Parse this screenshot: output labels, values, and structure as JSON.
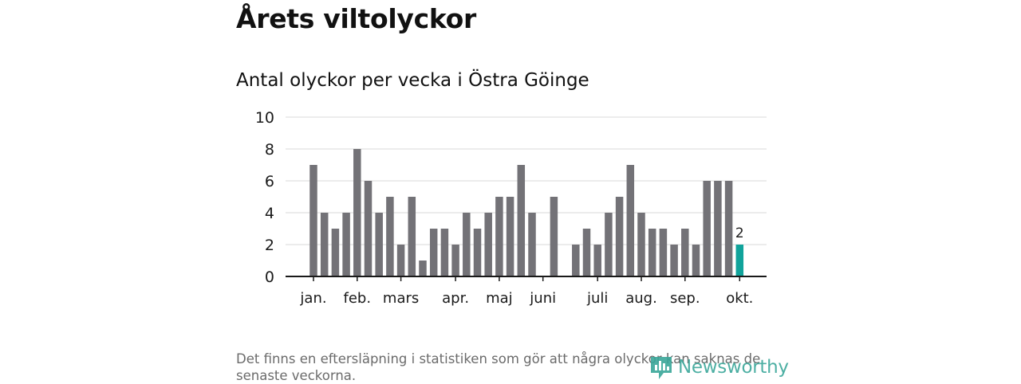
{
  "header": {
    "title": "Årets viltolyckor",
    "subtitle": "Antal olyckor per vecka i Östra Göinge"
  },
  "footer": {
    "note": "Det finns en eftersläpning i statistiken som gör att några olyckor kan saknas de senaste veckorna.",
    "brand": "Newsworthy"
  },
  "colors": {
    "bar": "#737277",
    "highlight": "#10a39b",
    "grid": "#d9d9d9",
    "axis": "#1a1a1a",
    "brand": "#3aa79a"
  },
  "chart_data": {
    "type": "bar",
    "title": "Antal olyckor per vecka i Östra Göinge",
    "ylim": [
      0,
      10
    ],
    "yticks": [
      0,
      2,
      4,
      6,
      8,
      10
    ],
    "grid": true,
    "x": [
      1,
      2,
      3,
      4,
      5,
      6,
      7,
      8,
      9,
      10,
      11,
      12,
      13,
      14,
      15,
      16,
      17,
      18,
      19,
      20,
      21,
      22,
      23,
      24,
      25,
      26,
      27,
      28,
      29,
      30,
      31,
      32,
      33,
      34,
      35,
      36,
      37,
      38,
      39,
      40
    ],
    "values": [
      7,
      4,
      3,
      4,
      8,
      6,
      4,
      5,
      2,
      5,
      1,
      3,
      3,
      2,
      4,
      3,
      4,
      5,
      5,
      7,
      4,
      0,
      5,
      null,
      2,
      3,
      2,
      4,
      5,
      7,
      4,
      3,
      3,
      2,
      3,
      2,
      6,
      6,
      6,
      2
    ],
    "highlight_index": 39,
    "highlight_label": "2",
    "month_labels": [
      "jan.",
      "feb.",
      "mars",
      "apr.",
      "maj",
      "juni",
      "juli",
      "aug.",
      "sep.",
      "okt."
    ],
    "month_ticks": [
      1,
      5,
      9,
      14,
      18,
      22,
      27,
      31,
      35,
      40
    ]
  }
}
